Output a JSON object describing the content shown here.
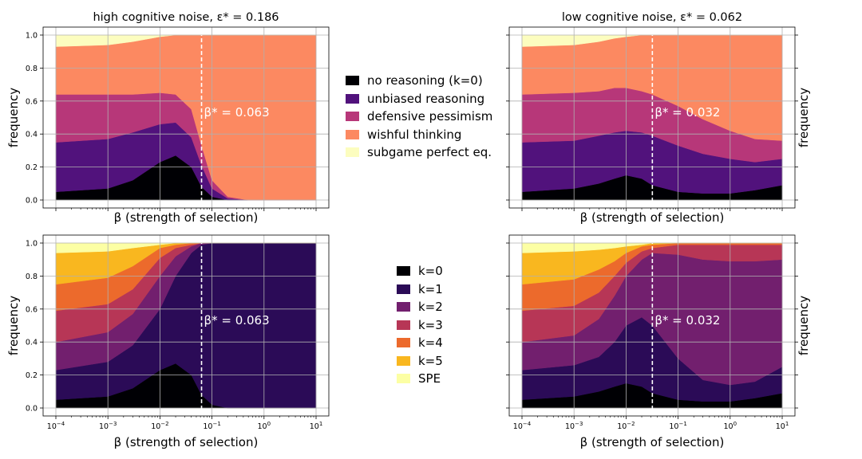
{
  "figure": {
    "xticks": [
      "10^-4",
      "10^-3",
      "10^-2",
      "10^-1",
      "10^0",
      "10^1"
    ],
    "yticks": [
      "0.0",
      "0.2",
      "0.4",
      "0.6",
      "0.8",
      "1.0"
    ],
    "xlabel": "β (strength of selection)",
    "ylabel": "frequency"
  },
  "legend_reasoning": [
    {
      "label": "no reasoning (k=0)",
      "color": "#000004"
    },
    {
      "label": "unbiased reasoning",
      "color": "#51127c"
    },
    {
      "label": "defensive pessimism",
      "color": "#b73779"
    },
    {
      "label": "wishful thinking",
      "color": "#fc8961"
    },
    {
      "label": "subgame perfect eq.",
      "color": "#fcfdbf"
    }
  ],
  "legend_k": [
    {
      "label": "k=0",
      "color": "#000004"
    },
    {
      "label": "k=1",
      "color": "#2b0b57"
    },
    {
      "label": "k=2",
      "color": "#721f6e"
    },
    {
      "label": "k=3",
      "color": "#b73656"
    },
    {
      "label": "k=4",
      "color": "#ec6a2c"
    },
    {
      "label": "k=5",
      "color": "#f9b71f"
    },
    {
      "label": "SPE",
      "color": "#fcffa4"
    }
  ],
  "chart_data": [
    {
      "type": "area",
      "title": "high cognitive noise, ε* = 0.186",
      "xlabel": "β (strength of selection)",
      "ylabel": "frequency",
      "xscale": "log",
      "xlim": [
        0.0001,
        10
      ],
      "ylim": [
        0,
        1
      ],
      "grid": true,
      "annotation": {
        "text": "β* = 0.063",
        "x": 0.063
      },
      "x": [
        0.0001,
        0.001,
        0.003,
        0.01,
        0.02,
        0.04,
        0.063,
        0.1,
        0.2,
        0.5,
        1,
        10
      ],
      "stacked_bounds": {
        "no reasoning (k=0)": [
          0.05,
          0.07,
          0.12,
          0.23,
          0.27,
          0.2,
          0.08,
          0.02,
          0.0,
          0.0,
          0.0,
          0.0
        ],
        "unbiased reasoning": [
          0.35,
          0.37,
          0.41,
          0.46,
          0.47,
          0.38,
          0.21,
          0.07,
          0.01,
          0.0,
          0.0,
          0.0
        ],
        "defensive pessimism": [
          0.64,
          0.64,
          0.64,
          0.65,
          0.64,
          0.55,
          0.33,
          0.12,
          0.02,
          0.0,
          0.0,
          0.0
        ],
        "wishful thinking": [
          0.93,
          0.94,
          0.96,
          0.99,
          1.0,
          1.0,
          1.0,
          1.0,
          1.0,
          1.0,
          1.0,
          1.0
        ],
        "subgame perfect eq.": [
          1,
          1,
          1,
          1,
          1,
          1,
          1,
          1,
          1,
          1,
          1,
          1
        ]
      }
    },
    {
      "type": "area",
      "title": "low cognitive noise, ε* = 0.062",
      "xlabel": "β (strength of selection)",
      "ylabel": "frequency",
      "xscale": "log",
      "xlim": [
        0.0001,
        10
      ],
      "ylim": [
        0,
        1
      ],
      "grid": true,
      "annotation": {
        "text": "β* = 0.032",
        "x": 0.032
      },
      "x": [
        0.0001,
        0.001,
        0.003,
        0.006,
        0.01,
        0.02,
        0.032,
        0.1,
        0.3,
        1,
        3,
        10
      ],
      "stacked_bounds": {
        "no reasoning (k=0)": [
          0.05,
          0.07,
          0.1,
          0.13,
          0.15,
          0.13,
          0.09,
          0.05,
          0.04,
          0.04,
          0.06,
          0.09
        ],
        "unbiased reasoning": [
          0.35,
          0.36,
          0.39,
          0.41,
          0.42,
          0.41,
          0.39,
          0.33,
          0.28,
          0.25,
          0.23,
          0.25
        ],
        "defensive pessimism": [
          0.64,
          0.65,
          0.66,
          0.68,
          0.68,
          0.66,
          0.64,
          0.57,
          0.49,
          0.42,
          0.37,
          0.36
        ],
        "wishful thinking": [
          0.93,
          0.94,
          0.96,
          0.98,
          0.99,
          1.0,
          1.0,
          1.0,
          1.0,
          1.0,
          1.0,
          1.0
        ],
        "subgame perfect eq.": [
          1,
          1,
          1,
          1,
          1,
          1,
          1,
          1,
          1,
          1,
          1,
          1
        ]
      }
    },
    {
      "type": "area",
      "title": "",
      "xlabel": "β (strength of selection)",
      "ylabel": "frequency",
      "xscale": "log",
      "xlim": [
        0.0001,
        10
      ],
      "ylim": [
        0,
        1
      ],
      "grid": true,
      "annotation": {
        "text": "β* = 0.063",
        "x": 0.063
      },
      "x": [
        0.0001,
        0.001,
        0.003,
        0.01,
        0.02,
        0.04,
        0.063,
        0.1,
        0.2,
        0.5,
        1,
        10
      ],
      "stacked_bounds": {
        "k=0": [
          0.05,
          0.07,
          0.12,
          0.23,
          0.27,
          0.2,
          0.08,
          0.02,
          0.0,
          0.0,
          0.0,
          0.0
        ],
        "k=1": [
          0.23,
          0.28,
          0.38,
          0.6,
          0.8,
          0.94,
          0.99,
          1.0,
          1.0,
          1.0,
          1.0,
          1.0
        ],
        "k=2": [
          0.4,
          0.46,
          0.57,
          0.8,
          0.92,
          0.98,
          1.0,
          1.0,
          1.0,
          1.0,
          1.0,
          1.0
        ],
        "k=3": [
          0.59,
          0.63,
          0.72,
          0.91,
          0.97,
          0.99,
          1.0,
          1.0,
          1.0,
          1.0,
          1.0,
          1.0
        ],
        "k=4": [
          0.75,
          0.79,
          0.86,
          0.97,
          0.99,
          1.0,
          1.0,
          1.0,
          1.0,
          1.0,
          1.0,
          1.0
        ],
        "k=5": [
          0.94,
          0.95,
          0.97,
          0.99,
          1.0,
          1.0,
          1.0,
          1.0,
          1.0,
          1.0,
          1.0,
          1.0
        ],
        "SPE": [
          1,
          1,
          1,
          1,
          1,
          1,
          1,
          1,
          1,
          1,
          1,
          1
        ]
      }
    },
    {
      "type": "area",
      "title": "",
      "xlabel": "β (strength of selection)",
      "ylabel": "frequency",
      "xscale": "log",
      "xlim": [
        0.0001,
        10
      ],
      "ylim": [
        0,
        1
      ],
      "grid": true,
      "annotation": {
        "text": "β* = 0.032",
        "x": 0.032
      },
      "x": [
        0.0001,
        0.001,
        0.003,
        0.006,
        0.01,
        0.02,
        0.032,
        0.1,
        0.3,
        1,
        3,
        10
      ],
      "stacked_bounds": {
        "k=0": [
          0.05,
          0.07,
          0.1,
          0.13,
          0.15,
          0.13,
          0.09,
          0.05,
          0.04,
          0.04,
          0.06,
          0.09
        ],
        "k=1": [
          0.23,
          0.26,
          0.31,
          0.4,
          0.5,
          0.55,
          0.5,
          0.3,
          0.17,
          0.14,
          0.16,
          0.25
        ],
        "k=2": [
          0.4,
          0.44,
          0.54,
          0.68,
          0.8,
          0.9,
          0.94,
          0.93,
          0.9,
          0.89,
          0.89,
          0.9
        ],
        "k=3": [
          0.59,
          0.62,
          0.7,
          0.8,
          0.88,
          0.95,
          0.97,
          0.99,
          0.99,
          0.99,
          0.99,
          0.99
        ],
        "k=4": [
          0.75,
          0.78,
          0.84,
          0.89,
          0.94,
          0.98,
          0.99,
          1.0,
          1.0,
          1.0,
          1.0,
          1.0
        ],
        "k=5": [
          0.94,
          0.95,
          0.96,
          0.97,
          0.98,
          0.99,
          1.0,
          1.0,
          1.0,
          1.0,
          1.0,
          1.0
        ],
        "SPE": [
          1,
          1,
          1,
          1,
          1,
          1,
          1,
          1,
          1,
          1,
          1,
          1
        ]
      }
    }
  ]
}
